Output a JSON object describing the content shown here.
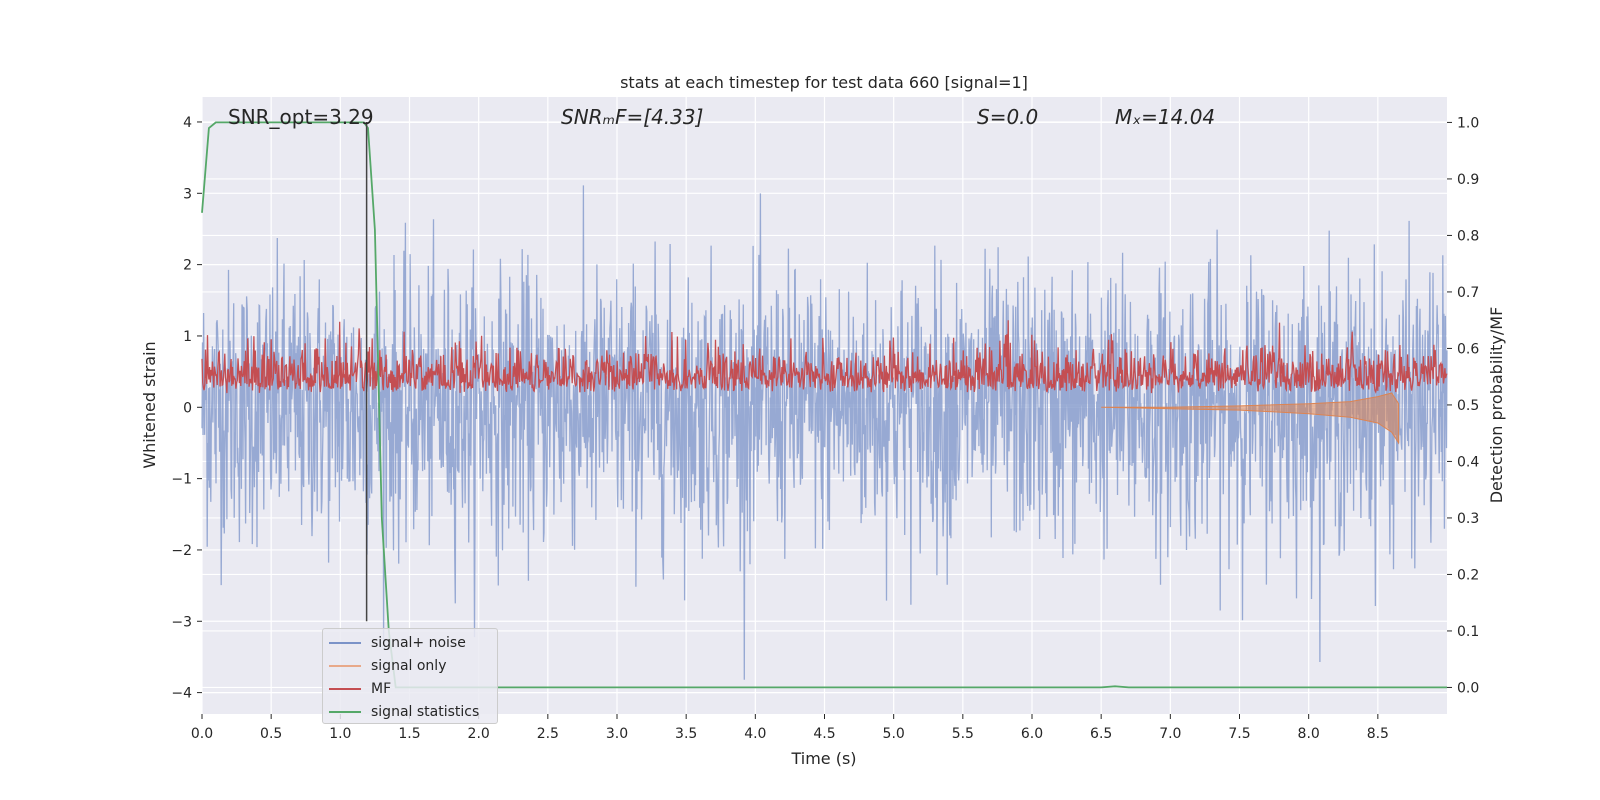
{
  "chart_data": {
    "type": "line",
    "title": "stats at each timestep for test data 660 [signal=1]",
    "xlabel": "Time (s)",
    "ylabel": "Whitened strain",
    "y2label": "Detection probability/MF",
    "xlim": [
      0,
      9.0
    ],
    "ylim": [
      -4.3,
      4.35
    ],
    "y2lim": [
      -0.047,
      1.045
    ],
    "xticks": [
      "0.0",
      "0.5",
      "1.0",
      "1.5",
      "2.0",
      "2.5",
      "3.0",
      "3.5",
      "4.0",
      "4.5",
      "5.0",
      "5.5",
      "6.0",
      "6.5",
      "7.0",
      "7.5",
      "8.0",
      "8.5"
    ],
    "yticks": [
      "4",
      "3",
      "2",
      "1",
      "0",
      "−1",
      "−2",
      "−3",
      "−4"
    ],
    "y2ticks": [
      "1.0",
      "0.9",
      "0.8",
      "0.7",
      "0.6",
      "0.5",
      "0.4",
      "0.3",
      "0.2",
      "0.1",
      "0.0"
    ],
    "grid": true,
    "legend_position": "lower-left",
    "annotations": {
      "snr_opt": "SNR_opt=3.29",
      "snr_mf": "SNRₘF=[4.33]",
      "s": "S=0.0",
      "mc": "Mₓ=14.04"
    },
    "marker_line_x": 1.19,
    "series": [
      {
        "name": "signal+ noise",
        "color": "#7b93c8",
        "axis": "left",
        "description_values": {
          "approx_range": [
            -3.9,
            3.35
          ],
          "noise_std": 1.0
        }
      },
      {
        "name": "signal only",
        "color": "#dd8452",
        "axis": "left",
        "x": [
          6.5,
          7.0,
          7.5,
          8.0,
          8.3,
          8.5,
          8.6,
          8.65
        ],
        "y_upper": [
          0,
          0,
          0.02,
          0.05,
          0.08,
          0.15,
          0.2,
          0.05
        ],
        "y_lower": [
          0,
          -0.02,
          -0.04,
          -0.09,
          -0.14,
          -0.22,
          -0.35,
          -0.5
        ]
      },
      {
        "name": "MF",
        "color": "#c44e52",
        "axis": "right",
        "description_values": {
          "approx_range": [
            0.5,
            0.65
          ]
        }
      },
      {
        "name": "signal statistics",
        "color": "#55a868",
        "axis": "right",
        "x": [
          0.0,
          0.05,
          0.1,
          0.2,
          0.5,
          1.0,
          1.17,
          1.2,
          1.25,
          1.3,
          1.35,
          1.4,
          2.0,
          4.0,
          6.0,
          6.5,
          6.6,
          6.7,
          7.0,
          8.0,
          9.0
        ],
        "y": [
          0.84,
          0.99,
          1.0,
          1.0,
          1.0,
          1.0,
          1.0,
          0.99,
          0.81,
          0.3,
          0.1,
          0.0,
          0.0,
          0.0,
          0.0,
          0.0,
          0.002,
          0.0,
          0.0,
          0.0,
          0.0
        ]
      }
    ]
  },
  "colors": {
    "plot_bg": "#eaeaf2",
    "grid": "#ffffff",
    "text": "#262626"
  }
}
